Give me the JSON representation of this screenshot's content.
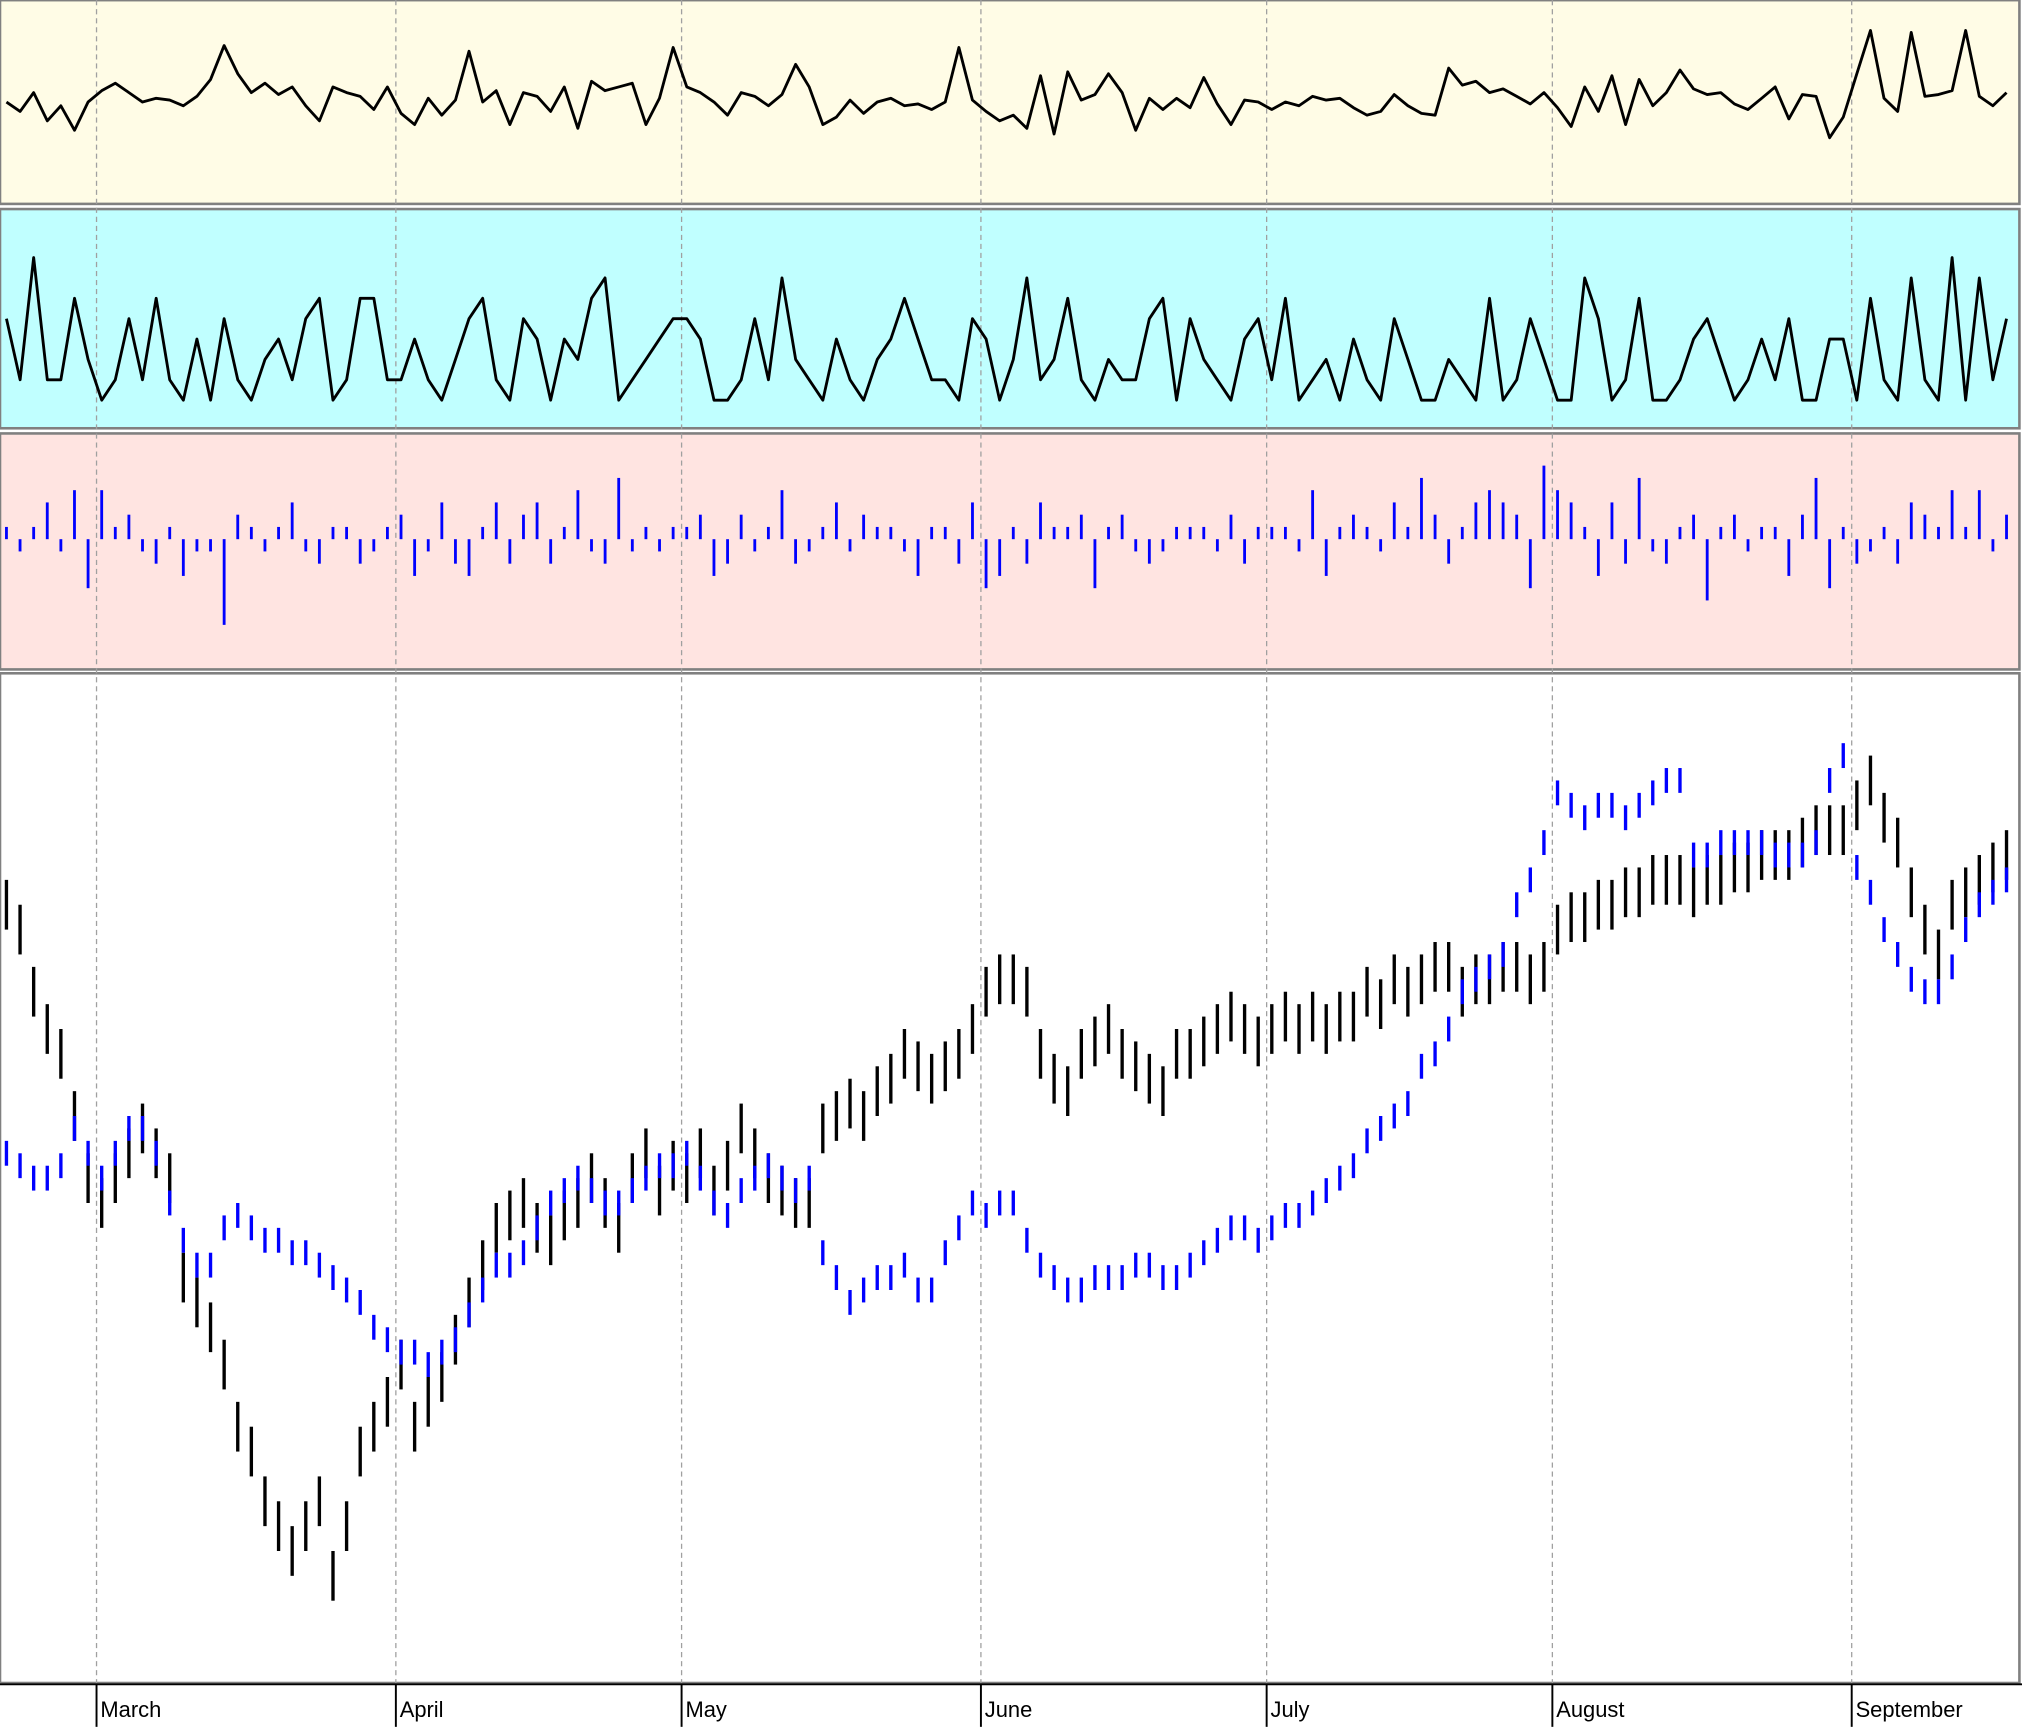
{
  "chart_data": [
    {
      "type": "line",
      "color": "#000000",
      "background": "#fffce6",
      "ylim": [
        0,
        10
      ],
      "values": [
        5,
        4.5,
        5.5,
        4,
        4.8,
        3.5,
        5,
        5.6,
        6,
        5.5,
        5,
        5.2,
        5.1,
        4.8,
        5.3,
        6.2,
        8,
        6.5,
        5.5,
        6,
        5.4,
        5.8,
        4.8,
        4,
        5.8,
        5.5,
        5.3,
        4.6,
        5.8,
        4.4,
        3.8,
        5.2,
        4.3,
        5.1,
        7.7,
        5,
        5.6,
        3.8,
        5.5,
        5.3,
        4.5,
        5.8,
        3.6,
        6.1,
        5.6,
        5.8,
        6,
        3.8,
        5.2,
        7.9,
        5.8,
        5.5,
        5,
        4.3,
        5.5,
        5.3,
        4.8,
        5.4,
        7,
        5.8,
        3.8,
        4.2,
        5.1,
        4.4,
        5,
        5.2,
        4.8,
        4.9,
        4.6,
        5,
        7.9,
        5.1,
        4.5,
        4,
        4.3,
        3.6,
        6.4,
        3.3,
        6.6,
        5.1,
        5.4,
        6.5,
        5.5,
        3.5,
        5.2,
        4.6,
        5.2,
        4.7,
        6.3,
        4.9,
        3.8,
        5.1,
        5,
        4.6,
        5,
        4.8,
        5.3,
        5.1,
        5.2,
        4.7,
        4.3,
        4.5,
        5.4,
        4.8,
        4.4,
        4.3,
        6.8,
        5.9,
        6.1,
        5.5,
        5.7,
        5.3,
        4.9,
        5.5,
        4.7,
        3.7,
        5.8,
        4.5,
        6.4,
        3.8,
        6.2,
        4.8,
        5.5,
        6.7,
        5.7,
        5.4,
        5.5,
        4.9,
        4.6,
        5.2,
        5.8,
        4.1,
        5.4,
        5.3,
        3.1,
        4.2,
        6.5,
        8.8,
        5.2,
        4.5,
        8.7,
        5.3,
        5.4,
        5.6,
        8.8,
        5.3,
        4.8,
        5.5
      ]
    },
    {
      "type": "line",
      "color": "#000000",
      "background": "#c0ffff",
      "ylim": [
        0,
        10
      ],
      "values": [
        5,
        2,
        8,
        2,
        2,
        6,
        3,
        1,
        2,
        5,
        2,
        6,
        2,
        1,
        4,
        1,
        5,
        2,
        1,
        3,
        4,
        2,
        5,
        6,
        1,
        2,
        6,
        6,
        2,
        2,
        4,
        2,
        1,
        3,
        5,
        6,
        2,
        1,
        5,
        4,
        1,
        4,
        3,
        6,
        7,
        1,
        2,
        3,
        4,
        5,
        5,
        4,
        1,
        1,
        2,
        5,
        2,
        7,
        3,
        2,
        1,
        4,
        2,
        1,
        3,
        4,
        6,
        4,
        2,
        2,
        1,
        5,
        4,
        1,
        3,
        7,
        2,
        3,
        6,
        2,
        1,
        3,
        2,
        2,
        5,
        6,
        1,
        5,
        3,
        2,
        1,
        4,
        5,
        2,
        6,
        1,
        2,
        3,
        1,
        4,
        2,
        1,
        5,
        3,
        1,
        1,
        3,
        2,
        1,
        6,
        1,
        2,
        5,
        3,
        1,
        1,
        7,
        5,
        1,
        2,
        6,
        1,
        1,
        2,
        4,
        5,
        3,
        1,
        2,
        4,
        2,
        5,
        1,
        1,
        4,
        4,
        1,
        6,
        2,
        1,
        7,
        2,
        1,
        8,
        1,
        7,
        2,
        5
      ]
    },
    {
      "type": "bar",
      "color": "#0000ff",
      "background": "#ffe4e1",
      "ylim": [
        -10,
        8
      ],
      "values": [
        1,
        -1,
        1,
        3,
        -1,
        4,
        -4,
        4,
        1,
        2,
        -1,
        -2,
        1,
        -3,
        -1,
        -1,
        -7,
        2,
        1,
        -1,
        1,
        3,
        -1,
        -2,
        1,
        1,
        -2,
        -1,
        1,
        2,
        -3,
        -1,
        3,
        -2,
        -3,
        1,
        3,
        -2,
        2,
        3,
        -2,
        1,
        4,
        -1,
        -2,
        5,
        -1,
        1,
        -1,
        1,
        1,
        2,
        -3,
        -2,
        2,
        -1,
        1,
        4,
        -2,
        -1,
        1,
        3,
        -1,
        2,
        1,
        1,
        -1,
        -3,
        1,
        1,
        -2,
        3,
        -4,
        -3,
        1,
        -2,
        3,
        1,
        1,
        2,
        -4,
        1,
        2,
        -1,
        -2,
        -1,
        1,
        1,
        1,
        -1,
        2,
        -2,
        1,
        1,
        1,
        -1,
        4,
        -3,
        1,
        2,
        1,
        -1,
        3,
        1,
        5,
        2,
        -2,
        1,
        3,
        4,
        3,
        2,
        -4,
        6,
        4,
        3,
        1,
        -3,
        3,
        -2,
        5,
        -1,
        -2,
        1,
        2,
        -5,
        1,
        2,
        -1,
        1,
        1,
        -3,
        2,
        5,
        -4,
        1,
        -2,
        -1,
        1,
        -2,
        3,
        2,
        1,
        4,
        1,
        4,
        -1,
        2
      ]
    },
    {
      "type": "ohlc",
      "background": "#ffffff",
      "ylim": [
        0,
        80
      ],
      "grid": true,
      "categories": [
        null,
        null,
        null,
        null,
        null,
        null,
        null,
        "March",
        null,
        null,
        null,
        null,
        null,
        null,
        null,
        null,
        null,
        null,
        null,
        null,
        null,
        null,
        null,
        null,
        null,
        null,
        null,
        null,
        null,
        "April",
        null,
        null,
        null,
        null,
        null,
        null,
        null,
        null,
        null,
        null,
        null,
        null,
        null,
        null,
        null,
        null,
        null,
        null,
        null,
        null,
        "May",
        null,
        null,
        null,
        null,
        null,
        null,
        null,
        null,
        null,
        null,
        null,
        null,
        null,
        null,
        null,
        null,
        null,
        null,
        null,
        null,
        null,
        "June",
        null,
        null,
        null,
        null,
        null,
        null,
        null,
        null,
        null,
        null,
        null,
        null,
        null,
        null,
        null,
        null,
        null,
        null,
        null,
        null,
        "July",
        null,
        null,
        null,
        null,
        null,
        null,
        null,
        null,
        null,
        null,
        null,
        null,
        null,
        null,
        null,
        null,
        null,
        null,
        null,
        null,
        "August",
        null,
        null,
        null,
        null,
        null,
        null,
        null,
        null,
        null,
        null,
        null,
        null,
        null,
        null,
        null,
        null,
        null,
        null,
        null,
        null,
        null,
        "September",
        null,
        null,
        null,
        null,
        null,
        null,
        null,
        null,
        null,
        null,
        null
      ],
      "series": [
        {
          "color": "#000000",
          "high": [
            64,
            62,
            57,
            54,
            52,
            47,
            42,
            40,
            42,
            44,
            46,
            44,
            42,
            34,
            32,
            30,
            27,
            22,
            20,
            16,
            14,
            12,
            14,
            16,
            10,
            14,
            20,
            22,
            24,
            27,
            22,
            24,
            26,
            29,
            32,
            35,
            38,
            39,
            40,
            38,
            37,
            39,
            40,
            42,
            40,
            38,
            42,
            44,
            41,
            43,
            42,
            44,
            41,
            43,
            46,
            44,
            42,
            41,
            40,
            40,
            46,
            47,
            48,
            47,
            49,
            50,
            52,
            51,
            50,
            51,
            52,
            54,
            57,
            58,
            58,
            57,
            52,
            50,
            49,
            52,
            53,
            54,
            52,
            51,
            50,
            49,
            52,
            52,
            53,
            54,
            55,
            54,
            53,
            54,
            55,
            54,
            55,
            54,
            55,
            55,
            57,
            56,
            58,
            57,
            58,
            59,
            59,
            57,
            58,
            58,
            59,
            59,
            58,
            59,
            62,
            63,
            63,
            64,
            64,
            65,
            65,
            66,
            66,
            66,
            65,
            66,
            66,
            67,
            67,
            68,
            68,
            68,
            69,
            70,
            70,
            70,
            72,
            74,
            71,
            69,
            65,
            62,
            60,
            64,
            65,
            66,
            67,
            68
          ],
          "low": [
            60,
            58,
            53,
            50,
            48,
            43,
            38,
            36,
            38,
            40,
            42,
            40,
            38,
            30,
            28,
            26,
            23,
            18,
            16,
            12,
            10,
            8,
            10,
            12,
            6,
            10,
            16,
            18,
            20,
            23,
            18,
            20,
            22,
            25,
            28,
            31,
            34,
            35,
            36,
            34,
            33,
            35,
            36,
            38,
            36,
            34,
            38,
            40,
            37,
            39,
            38,
            40,
            37,
            39,
            42,
            40,
            38,
            37,
            36,
            36,
            42,
            43,
            44,
            43,
            45,
            46,
            48,
            47,
            46,
            47,
            48,
            50,
            53,
            54,
            54,
            53,
            48,
            46,
            45,
            48,
            49,
            50,
            48,
            47,
            46,
            45,
            48,
            48,
            49,
            50,
            51,
            50,
            49,
            50,
            51,
            50,
            51,
            50,
            51,
            51,
            53,
            52,
            54,
            53,
            54,
            55,
            55,
            53,
            54,
            54,
            55,
            55,
            54,
            55,
            58,
            59,
            59,
            60,
            60,
            61,
            61,
            62,
            62,
            62,
            61,
            62,
            62,
            63,
            63,
            64,
            64,
            64,
            65,
            66,
            66,
            66,
            68,
            70,
            67,
            65,
            61,
            58,
            56,
            60,
            61,
            62,
            63,
            64
          ]
        },
        {
          "color": "#0000ff",
          "high": [
            43,
            42,
            41,
            41,
            42,
            45,
            43,
            41,
            43,
            45,
            45,
            43,
            39,
            36,
            34,
            34,
            37,
            38,
            37,
            36,
            36,
            35,
            35,
            34,
            33,
            32,
            31,
            29,
            28,
            27,
            27,
            26,
            27,
            28,
            30,
            32,
            34,
            34,
            35,
            37,
            39,
            40,
            41,
            40,
            39,
            39,
            40,
            41,
            42,
            42,
            43,
            41,
            39,
            38,
            40,
            41,
            42,
            41,
            40,
            41,
            35,
            33,
            31,
            32,
            33,
            33,
            34,
            32,
            32,
            35,
            37,
            39,
            38,
            39,
            39,
            36,
            34,
            33,
            32,
            32,
            33,
            33,
            33,
            34,
            34,
            33,
            33,
            34,
            35,
            36,
            37,
            37,
            36,
            37,
            38,
            38,
            39,
            40,
            41,
            42,
            44,
            45,
            46,
            47,
            50,
            51,
            53,
            56,
            57,
            58,
            59,
            63,
            65,
            68,
            72,
            71,
            70,
            71,
            71,
            70,
            71,
            72,
            73,
            73,
            67,
            67,
            68,
            68,
            68,
            68,
            67,
            67,
            67,
            68,
            73,
            75,
            66,
            64,
            61,
            59,
            57,
            56,
            56,
            58,
            61,
            63,
            64,
            65
          ],
          "low": [
            41,
            40,
            39,
            39,
            40,
            43,
            41,
            39,
            41,
            43,
            43,
            41,
            37,
            34,
            32,
            32,
            35,
            36,
            35,
            34,
            34,
            33,
            33,
            32,
            31,
            30,
            29,
            27,
            26,
            25,
            25,
            24,
            25,
            26,
            28,
            30,
            32,
            32,
            33,
            35,
            37,
            38,
            39,
            38,
            37,
            37,
            38,
            39,
            40,
            40,
            41,
            39,
            37,
            36,
            38,
            39,
            40,
            39,
            38,
            39,
            33,
            31,
            29,
            30,
            31,
            31,
            32,
            30,
            30,
            33,
            35,
            37,
            36,
            37,
            37,
            34,
            32,
            31,
            30,
            30,
            31,
            31,
            31,
            32,
            32,
            31,
            31,
            32,
            33,
            34,
            35,
            35,
            34,
            35,
            36,
            36,
            37,
            38,
            39,
            40,
            42,
            43,
            44,
            45,
            48,
            49,
            51,
            54,
            55,
            56,
            57,
            61,
            63,
            66,
            70,
            69,
            68,
            69,
            69,
            68,
            69,
            70,
            71,
            71,
            65,
            65,
            66,
            66,
            66,
            66,
            65,
            65,
            65,
            66,
            71,
            73,
            64,
            62,
            59,
            57,
            55,
            54,
            54,
            56,
            59,
            61,
            62,
            63
          ]
        }
      ]
    }
  ]
}
